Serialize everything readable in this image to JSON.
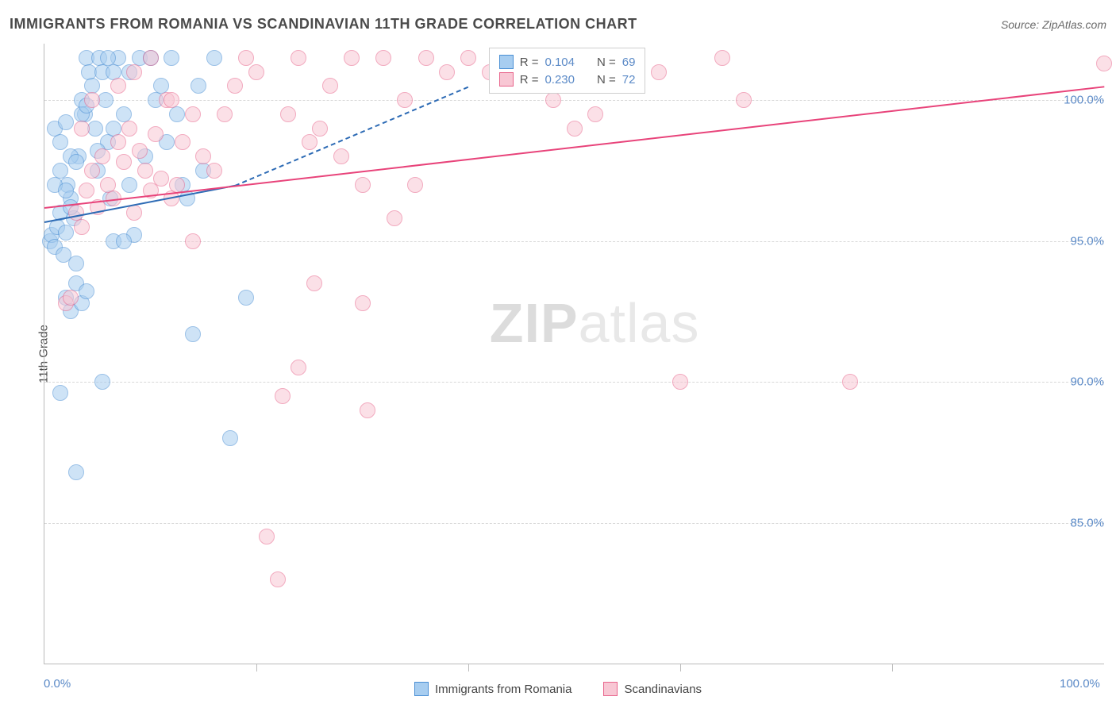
{
  "header": {
    "title": "IMMIGRANTS FROM ROMANIA VS SCANDINAVIAN 11TH GRADE CORRELATION CHART",
    "source": "Source: ZipAtlas.com"
  },
  "chart": {
    "type": "scatter",
    "ylabel": "11th Grade",
    "background_color": "#ffffff",
    "grid_color": "#d8d8d8",
    "axis_color": "#bbbbbb",
    "tick_label_color": "#5b8ac7",
    "axis_label_color": "#4a4a4a",
    "xlim": [
      0,
      100
    ],
    "ylim": [
      80,
      102
    ],
    "ytick_labels": [
      "85.0%",
      "90.0%",
      "95.0%",
      "100.0%"
    ],
    "ytick_positions": [
      85,
      90,
      95,
      100
    ],
    "xtick_labels": [
      "0.0%",
      "100.0%"
    ],
    "xtick_positions": [
      0,
      100
    ],
    "xtick_minor_positions": [
      20,
      40,
      60,
      80
    ],
    "watermark": {
      "zip": "ZIP",
      "atlas": "atlas"
    },
    "point_radius": 10,
    "point_opacity": 0.55,
    "series": [
      {
        "name": "Immigrants from Romania",
        "color_fill": "#a7cdf0",
        "color_stroke": "#4a8fd4",
        "R": "0.104",
        "N": "69",
        "trend": {
          "x1": 0,
          "y1": 95.7,
          "x2": 18,
          "y2": 97.0,
          "dash_x2": 40,
          "dash_y2": 100.5,
          "color": "#2d6bb5"
        },
        "points": [
          [
            0.5,
            95.0
          ],
          [
            0.7,
            95.2
          ],
          [
            1.0,
            94.8
          ],
          [
            1.2,
            95.5
          ],
          [
            1.5,
            96.0
          ],
          [
            1.8,
            94.5
          ],
          [
            2.0,
            95.3
          ],
          [
            2.2,
            97.0
          ],
          [
            2.5,
            96.5
          ],
          [
            2.8,
            95.8
          ],
          [
            3.0,
            94.2
          ],
          [
            3.2,
            98.0
          ],
          [
            3.5,
            100.0
          ],
          [
            3.8,
            99.5
          ],
          [
            4.0,
            101.5
          ],
          [
            4.2,
            101.0
          ],
          [
            4.5,
            100.5
          ],
          [
            4.8,
            99.0
          ],
          [
            5.0,
            97.5
          ],
          [
            5.2,
            101.5
          ],
          [
            5.5,
            101.0
          ],
          [
            5.8,
            100.0
          ],
          [
            6.0,
            98.5
          ],
          [
            6.2,
            96.5
          ],
          [
            6.5,
            95.0
          ],
          [
            7.0,
            101.5
          ],
          [
            7.5,
            99.5
          ],
          [
            8.0,
            101.0
          ],
          [
            8.5,
            95.2
          ],
          [
            9.0,
            101.5
          ],
          [
            10.0,
            101.5
          ],
          [
            11.0,
            100.5
          ],
          [
            2.0,
            93.0
          ],
          [
            2.5,
            92.5
          ],
          [
            3.0,
            93.5
          ],
          [
            3.5,
            92.8
          ],
          [
            4.0,
            93.2
          ],
          [
            1.0,
            99.0
          ],
          [
            1.5,
            98.5
          ],
          [
            2.0,
            99.2
          ],
          [
            2.5,
            98.0
          ],
          [
            3.0,
            97.8
          ],
          [
            3.5,
            99.5
          ],
          [
            1.0,
            97.0
          ],
          [
            1.5,
            97.5
          ],
          [
            2.0,
            96.8
          ],
          [
            2.5,
            96.2
          ],
          [
            6.0,
            101.5
          ],
          [
            6.5,
            101.0
          ],
          [
            12.0,
            101.5
          ],
          [
            13.0,
            97.0
          ],
          [
            14.0,
            91.7
          ],
          [
            3.0,
            86.8
          ],
          [
            5.5,
            90.0
          ],
          [
            1.5,
            89.6
          ],
          [
            7.5,
            95.0
          ],
          [
            17.5,
            88.0
          ],
          [
            19.0,
            93.0
          ],
          [
            10.5,
            100.0
          ],
          [
            11.5,
            98.5
          ],
          [
            12.5,
            99.5
          ],
          [
            13.5,
            96.5
          ],
          [
            14.5,
            100.5
          ],
          [
            15.0,
            97.5
          ],
          [
            16.0,
            101.5
          ],
          [
            9.5,
            98.0
          ],
          [
            8.0,
            97.0
          ],
          [
            6.5,
            99.0
          ],
          [
            5.0,
            98.2
          ],
          [
            4.0,
            99.8
          ]
        ]
      },
      {
        "name": "Scandinavians",
        "color_fill": "#f8c7d4",
        "color_stroke": "#e8658c",
        "R": "0.230",
        "N": "72",
        "trend": {
          "x1": 0,
          "y1": 96.2,
          "x2": 100,
          "y2": 100.5,
          "color": "#e8437a"
        },
        "points": [
          [
            2.0,
            92.8
          ],
          [
            2.5,
            93.0
          ],
          [
            3.0,
            96.0
          ],
          [
            3.5,
            95.5
          ],
          [
            4.0,
            96.8
          ],
          [
            4.5,
            97.5
          ],
          [
            5.0,
            96.2
          ],
          [
            5.5,
            98.0
          ],
          [
            6.0,
            97.0
          ],
          [
            6.5,
            96.5
          ],
          [
            7.0,
            98.5
          ],
          [
            7.5,
            97.8
          ],
          [
            8.0,
            99.0
          ],
          [
            8.5,
            96.0
          ],
          [
            9.0,
            98.2
          ],
          [
            9.5,
            97.5
          ],
          [
            10.0,
            96.8
          ],
          [
            10.5,
            98.8
          ],
          [
            11.0,
            97.2
          ],
          [
            11.5,
            100.0
          ],
          [
            12.0,
            96.5
          ],
          [
            12.5,
            97.0
          ],
          [
            13.0,
            98.5
          ],
          [
            14.0,
            95.0
          ],
          [
            15.0,
            98.0
          ],
          [
            16.0,
            97.5
          ],
          [
            17.0,
            99.5
          ],
          [
            18.0,
            100.5
          ],
          [
            19.0,
            101.5
          ],
          [
            20.0,
            101.0
          ],
          [
            21.0,
            84.5
          ],
          [
            22.0,
            83.0
          ],
          [
            23.0,
            99.5
          ],
          [
            24.0,
            101.5
          ],
          [
            25.0,
            98.5
          ],
          [
            26.0,
            99.0
          ],
          [
            27.0,
            100.5
          ],
          [
            28.0,
            98.0
          ],
          [
            29.0,
            101.5
          ],
          [
            30.0,
            97.0
          ],
          [
            25.5,
            93.5
          ],
          [
            24.0,
            90.5
          ],
          [
            30.5,
            89.0
          ],
          [
            22.5,
            89.5
          ],
          [
            32.0,
            101.5
          ],
          [
            34.0,
            100.0
          ],
          [
            35.0,
            97.0
          ],
          [
            36.0,
            101.5
          ],
          [
            38.0,
            101.0
          ],
          [
            40.0,
            101.5
          ],
          [
            42.0,
            101.0
          ],
          [
            33.0,
            95.8
          ],
          [
            30.0,
            92.8
          ],
          [
            44.0,
            101.5
          ],
          [
            46.0,
            100.5
          ],
          [
            48.0,
            100.0
          ],
          [
            50.0,
            99.0
          ],
          [
            52.0,
            99.5
          ],
          [
            55.0,
            101.5
          ],
          [
            58.0,
            101.0
          ],
          [
            60.0,
            90.0
          ],
          [
            64.0,
            101.5
          ],
          [
            66.0,
            100.0
          ],
          [
            76.0,
            90.0
          ],
          [
            100.0,
            101.3
          ],
          [
            7.0,
            100.5
          ],
          [
            8.5,
            101.0
          ],
          [
            10.0,
            101.5
          ],
          [
            12.0,
            100.0
          ],
          [
            14.0,
            99.5
          ],
          [
            3.5,
            99.0
          ],
          [
            4.5,
            100.0
          ]
        ]
      }
    ]
  },
  "stats_legend": {
    "label_R": "R =",
    "label_N": "N ="
  },
  "bottom_legend": {
    "items": [
      "Immigrants from Romania",
      "Scandinavians"
    ]
  }
}
